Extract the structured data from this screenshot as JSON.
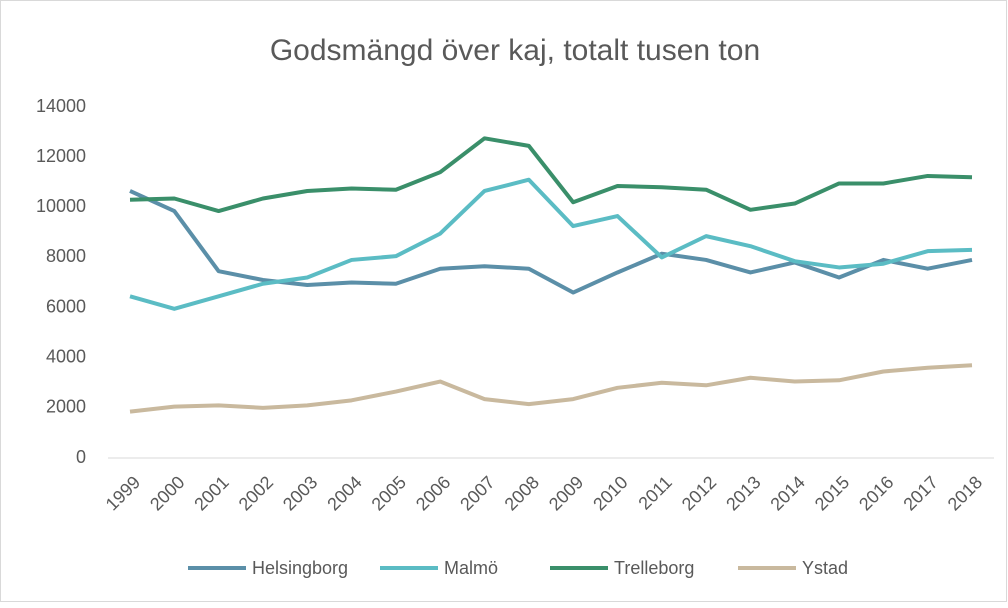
{
  "chart_data": {
    "type": "line",
    "title": "Godsmängd över kaj, totalt tusen ton",
    "categories": [
      "1999",
      "2000",
      "2001",
      "2002",
      "2003",
      "2004",
      "2005",
      "2006",
      "2007",
      "2008",
      "2009",
      "2010",
      "2011",
      "2012",
      "2013",
      "2014",
      "2015",
      "2016",
      "2017",
      "2018"
    ],
    "series": [
      {
        "name": "Helsingborg",
        "color": "#5b8fa8",
        "values": [
          10650,
          9850,
          7450,
          7100,
          6900,
          7000,
          6950,
          7550,
          7650,
          7550,
          6600,
          7400,
          8150,
          7900,
          7400,
          7800,
          7200,
          7900,
          7550,
          7900
        ]
      },
      {
        "name": "Malmö",
        "color": "#5bbcc4",
        "values": [
          6450,
          5950,
          6450,
          6950,
          7200,
          7900,
          8050,
          8950,
          10650,
          11100,
          9250,
          9650,
          8000,
          8850,
          8450,
          7850,
          7600,
          7750,
          8250,
          8300
        ]
      },
      {
        "name": "Trelleborg",
        "color": "#3a8f6a",
        "values": [
          10300,
          10350,
          9850,
          10350,
          10650,
          10750,
          10700,
          11400,
          12750,
          12450,
          10200,
          10850,
          10800,
          10700,
          9900,
          10150,
          10950,
          10950,
          11250,
          11200
        ]
      },
      {
        "name": "Ystad",
        "color": "#c9b99e",
        "values": [
          1850,
          2050,
          2100,
          2000,
          2100,
          2300,
          2650,
          3050,
          2350,
          2150,
          2350,
          2800,
          3000,
          2900,
          3200,
          3050,
          3100,
          3450,
          3600,
          3700
        ]
      }
    ],
    "ylim": [
      0,
      14000
    ],
    "yticks": [
      0,
      2000,
      4000,
      6000,
      8000,
      10000,
      12000,
      14000
    ],
    "grid": false,
    "legend": "bottom"
  }
}
